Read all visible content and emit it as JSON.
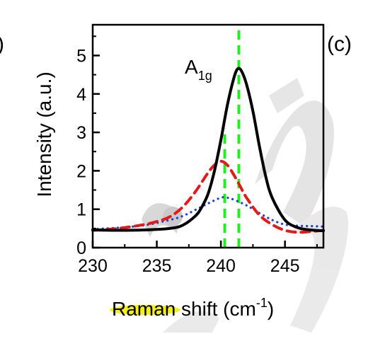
{
  "chart_data": {
    "type": "line",
    "panel_label": "(c)",
    "left_panel_fragment": ")",
    "xlabel": "Raman shift (cm",
    "xlabel_sup": "-1",
    "xlabel_close": ")",
    "ylabel": "Intensity (a.u.)",
    "peak_label": "A",
    "peak_label_sub": "1g",
    "xlim": [
      230,
      248
    ],
    "ylim": [
      0,
      5.8
    ],
    "xticks": [
      230,
      235,
      240,
      245
    ],
    "yticks": [
      0,
      1,
      2,
      3,
      4,
      5
    ],
    "grid": false,
    "series": [
      {
        "style": "solid",
        "color": "#000000",
        "x": [
          230,
          232,
          234,
          236,
          237,
          238,
          238.5,
          239,
          239.5,
          240,
          240.5,
          241,
          241.3,
          241.6,
          242,
          242.5,
          243,
          243.5,
          244,
          245,
          246,
          247,
          248
        ],
        "y": [
          0.46,
          0.45,
          0.46,
          0.5,
          0.58,
          0.82,
          1.05,
          1.4,
          2.0,
          2.8,
          3.7,
          4.4,
          4.65,
          4.6,
          4.25,
          3.55,
          2.65,
          1.85,
          1.3,
          0.72,
          0.52,
          0.46,
          0.44
        ]
      },
      {
        "style": "dashed",
        "color": "#e31a1c",
        "x": [
          230,
          232,
          234,
          235,
          236,
          237,
          238,
          239,
          239.5,
          240,
          240.5,
          241,
          241.5,
          242,
          243,
          244,
          245,
          246,
          247,
          248
        ],
        "y": [
          0.45,
          0.5,
          0.6,
          0.68,
          0.8,
          1.05,
          1.45,
          1.95,
          2.15,
          2.25,
          2.15,
          1.9,
          1.6,
          1.3,
          0.85,
          0.6,
          0.45,
          0.4,
          0.42,
          0.45
        ]
      },
      {
        "style": "dotted",
        "color": "#1f3fcf",
        "x": [
          230,
          232,
          234,
          236,
          237,
          238,
          239,
          240,
          240.5,
          241,
          242,
          243,
          244,
          245,
          246,
          247,
          248
        ],
        "y": [
          0.48,
          0.52,
          0.58,
          0.72,
          0.82,
          0.98,
          1.15,
          1.3,
          1.3,
          1.25,
          1.1,
          0.9,
          0.72,
          0.6,
          0.57,
          0.56,
          0.55
        ]
      }
    ],
    "reference_lines": [
      {
        "color": "#22ee22",
        "x": 241.4,
        "y_top": 5.8
      },
      {
        "color": "#22ee22",
        "x": 240.3,
        "y_top": 3.1
      }
    ]
  }
}
